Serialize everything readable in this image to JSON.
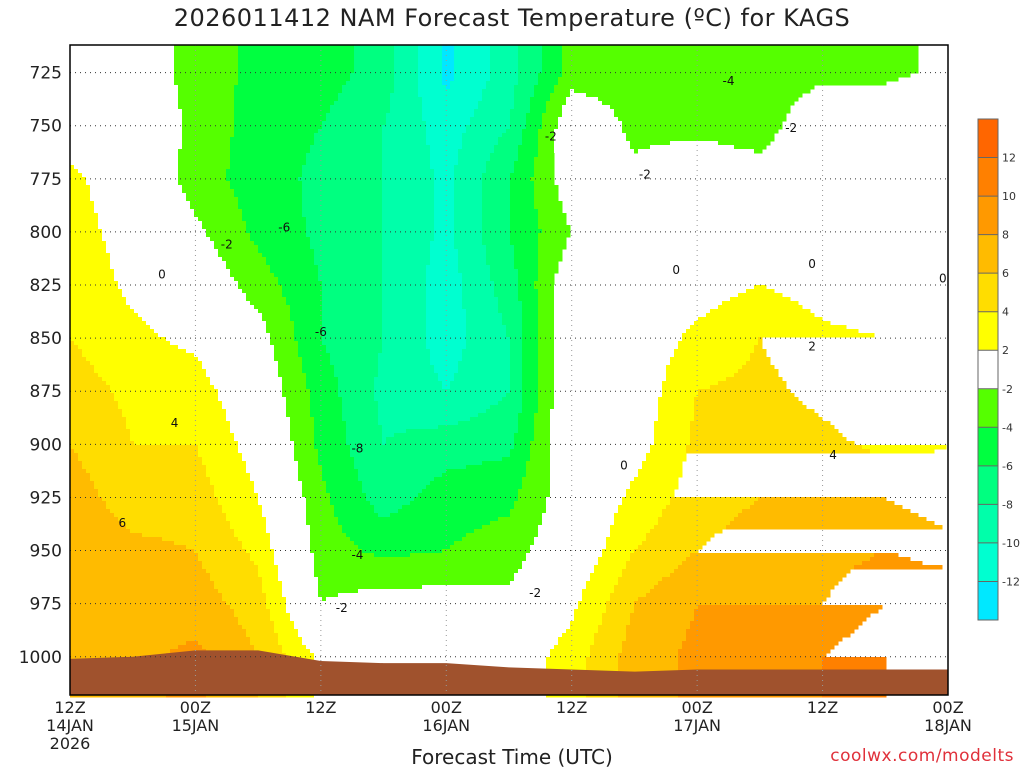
{
  "chart_data": {
    "type": "heatmap",
    "title": "2026011412 NAM Forecast Temperature (ºC) for KAGS",
    "xlabel": "Forecast Time (UTC)",
    "ylabel": "",
    "credit": "coolwx.com/modelts",
    "x_hours": [
      0,
      6,
      12,
      18,
      24,
      30,
      36,
      42,
      48,
      54,
      60,
      66,
      72,
      78,
      84
    ],
    "xlim": [
      0,
      84
    ],
    "ylim": [
      712,
      1018
    ],
    "pressure_levels": [
      712,
      725,
      750,
      775,
      800,
      825,
      850,
      875,
      900,
      925,
      950,
      975,
      1000,
      1018
    ],
    "temperature": [
      [
        -1,
        -1,
        1,
        2.5,
        3,
        3.5,
        4,
        5,
        6,
        7,
        7.5,
        8,
        8,
        8
      ],
      [
        0,
        0,
        0,
        0.5,
        1,
        1.5,
        2.5,
        3.5,
        4,
        5,
        6.5,
        7,
        7.5,
        7.5
      ],
      [
        -3,
        -3,
        -2.5,
        -3,
        -1.5,
        0,
        1.5,
        3,
        4,
        5,
        6,
        7,
        8.5,
        8.5
      ],
      [
        -4.5,
        -4.5,
        -5,
        -5,
        -4.5,
        -3,
        -1,
        0,
        1,
        2,
        3.5,
        5,
        6,
        6
      ],
      [
        -5,
        -5,
        -6,
        -6.5,
        -6.5,
        -6,
        -6,
        -5,
        -4.5,
        -3.5,
        -3,
        -2,
        1.5,
        1.5
      ],
      [
        -7,
        -7,
        -8,
        -8,
        -8,
        -8,
        -8,
        -8.5,
        -8,
        -7,
        -4.5,
        -1,
        0.5,
        0.5
      ],
      [
        -12.5,
        -12.5,
        -11,
        -10.5,
        -10.5,
        -11,
        -11,
        -10,
        -7,
        -5,
        -4,
        -1,
        2,
        2
      ],
      [
        -9,
        -9,
        -8,
        -6,
        -6,
        -7,
        -8,
        -8,
        -6.5,
        -4.5,
        -3,
        -1.5,
        0.5,
        0.5
      ],
      [
        -3,
        -3,
        0,
        -0.5,
        -2,
        0,
        0.5,
        0.5,
        0.5,
        -0.5,
        0,
        1.5,
        3,
        3
      ],
      [
        -3,
        -3,
        -2.5,
        -1.5,
        0,
        0.5,
        0.5,
        0.5,
        1,
        2.5,
        4,
        6,
        7,
        7
      ],
      [
        -3.5,
        -3.5,
        -2.5,
        -0.5,
        0.5,
        1,
        2.5,
        4,
        4.5,
        5,
        6,
        8,
        8.5,
        8.5
      ],
      [
        -3.5,
        -3.5,
        -3,
        -1,
        1,
        2,
        4,
        4.5,
        5,
        6,
        7,
        8,
        9,
        9
      ],
      [
        -2.5,
        -2.5,
        0,
        0,
        0.5,
        1,
        2.5,
        3.5,
        4.5,
        6,
        7,
        8,
        10,
        10
      ],
      [
        -2.5,
        -2.5,
        0,
        0,
        0,
        0.5,
        2,
        2.5,
        3.5,
        6,
        8,
        10,
        12,
        12
      ],
      [
        -1.5,
        -1.5,
        0,
        0,
        0,
        0,
        2,
        3,
        4,
        4.5,
        7,
        10,
        12,
        12.5
      ]
    ],
    "surface_pressure": [
      1001,
      1000,
      997,
      997,
      1002,
      1003,
      1003,
      1005,
      1006,
      1007,
      1006,
      1006,
      1006,
      1006,
      1006
    ],
    "y_ticks": [
      "725",
      "750",
      "775",
      "800",
      "825",
      "850",
      "875",
      "900",
      "925",
      "950",
      "975",
      "1000"
    ],
    "y_tick_values": [
      725,
      750,
      775,
      800,
      825,
      850,
      875,
      900,
      925,
      950,
      975,
      1000
    ],
    "x_ticks": [
      {
        "hour": 0,
        "time": "12Z",
        "date": "14JAN",
        "year": "2026"
      },
      {
        "hour": 12,
        "time": "00Z",
        "date": "15JAN",
        "year": ""
      },
      {
        "hour": 24,
        "time": "12Z",
        "date": "",
        "year": ""
      },
      {
        "hour": 36,
        "time": "00Z",
        "date": "16JAN",
        "year": ""
      },
      {
        "hour": 48,
        "time": "12Z",
        "date": "",
        "year": ""
      },
      {
        "hour": 60,
        "time": "00Z",
        "date": "17JAN",
        "year": ""
      },
      {
        "hour": 72,
        "time": "12Z",
        "date": "",
        "year": ""
      },
      {
        "hour": 84,
        "time": "00Z",
        "date": "18JAN",
        "year": ""
      }
    ],
    "contour_labels": [
      {
        "text": "0",
        "hour": 8.8,
        "p": 820
      },
      {
        "text": "-2",
        "hour": 15,
        "p": 806
      },
      {
        "text": "-6",
        "hour": 20.5,
        "p": 798
      },
      {
        "text": "-6",
        "hour": 24,
        "p": 847
      },
      {
        "text": "-8",
        "hour": 27.5,
        "p": 902
      },
      {
        "text": "-4",
        "hour": 27.5,
        "p": 952
      },
      {
        "text": "-2",
        "hour": 26,
        "p": 977
      },
      {
        "text": "4",
        "hour": 10,
        "p": 890
      },
      {
        "text": "6",
        "hour": 5,
        "p": 937
      },
      {
        "text": "-2",
        "hour": 46,
        "p": 755
      },
      {
        "text": "-2",
        "hour": 55,
        "p": 773
      },
      {
        "text": "-4",
        "hour": 63,
        "p": 729
      },
      {
        "text": "-2",
        "hour": 69,
        "p": 751
      },
      {
        "text": "0",
        "hour": 58,
        "p": 818
      },
      {
        "text": "0",
        "hour": 71,
        "p": 815
      },
      {
        "text": "0",
        "hour": 83.5,
        "p": 822
      },
      {
        "text": "0",
        "hour": 53,
        "p": 910
      },
      {
        "text": "-2",
        "hour": 44.5,
        "p": 970
      },
      {
        "text": "2",
        "hour": 71,
        "p": 854
      },
      {
        "text": "4",
        "hour": 73,
        "p": 905
      }
    ],
    "levels": [
      -14,
      -12,
      -10,
      -8,
      -6,
      -4,
      -2,
      2,
      4,
      6,
      8,
      10,
      12,
      14
    ],
    "colorbar_labels": [
      "-12",
      "-10",
      "-8",
      "-6",
      "-4",
      "-2",
      "2",
      "4",
      "6",
      "8",
      "10",
      "12"
    ],
    "colors": [
      "#00e8ff",
      "#00ffd0",
      "#00ffaa",
      "#00ff80",
      "#00ff40",
      "#55ff00",
      "#ffffff",
      "#ffff00",
      "#ffdd00",
      "#ffbb00",
      "#ff9900",
      "#ff8000",
      "#ff6600"
    ],
    "terrain_color": "#a0522d",
    "grid": true
  }
}
